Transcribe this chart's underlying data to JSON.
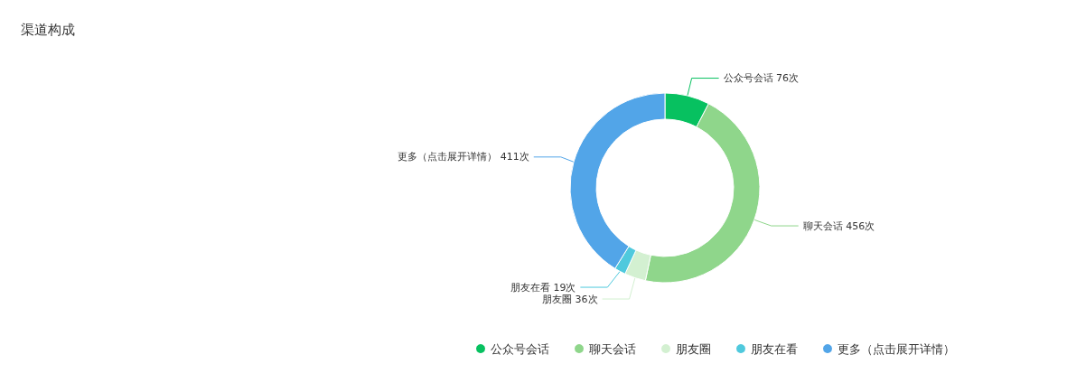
{
  "chart_data": {
    "type": "donut",
    "title": "渠道构成",
    "categories": [
      "公众号会话",
      "聊天会话",
      "朋友圈",
      "朋友在看",
      "更多（点击展开详情）"
    ],
    "values": [
      76,
      456,
      36,
      19,
      411
    ],
    "value_labels": [
      "76次",
      "456次",
      "36次",
      "19次",
      "411次"
    ],
    "colors": [
      "#07c160",
      "#8fd68b",
      "#d3f0d1",
      "#4fc9dd",
      "#52a5e8"
    ],
    "legend": "bottom"
  }
}
